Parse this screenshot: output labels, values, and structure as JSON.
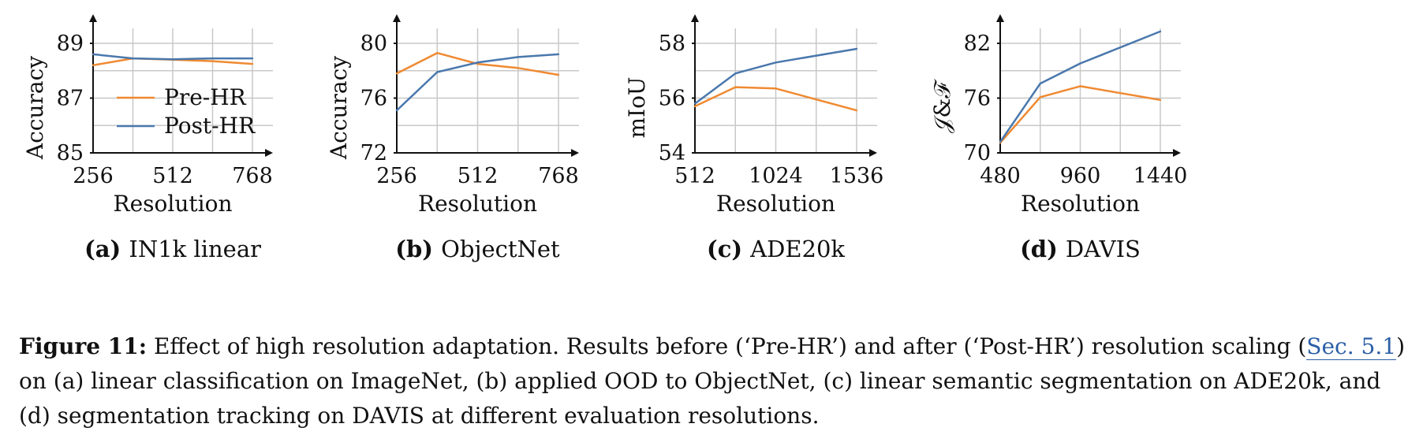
{
  "colors": {
    "pre": "#ef8a32",
    "post": "#4a78ad",
    "grid": "#c8c8c8",
    "axis": "#111111",
    "link": "#2b5fa6"
  },
  "legend": {
    "pre_label": "Pre-HR",
    "post_label": "Post-HR"
  },
  "chart_data": [
    {
      "type": "line",
      "subcaption_letter": "(a)",
      "subcaption_text": "IN1k linear",
      "xlabel": "Resolution",
      "ylabel": "Accuracy",
      "xticks": [
        256,
        512,
        768
      ],
      "yticks": [
        85,
        87,
        89
      ],
      "xlim": [
        256,
        768
      ],
      "ylim": [
        85,
        89.8
      ],
      "x": [
        256,
        384,
        512,
        640,
        768
      ],
      "series": [
        {
          "name": "Pre-HR",
          "values": [
            88.2,
            88.45,
            88.4,
            88.35,
            88.25
          ]
        },
        {
          "name": "Post-HR",
          "values": [
            88.6,
            88.45,
            88.42,
            88.45,
            88.45
          ]
        }
      ]
    },
    {
      "type": "line",
      "subcaption_letter": "(b)",
      "subcaption_text": "ObjectNet",
      "xlabel": "Resolution",
      "ylabel": "Accuracy",
      "xticks": [
        256,
        512,
        768
      ],
      "yticks": [
        72,
        76,
        80
      ],
      "xlim": [
        256,
        768
      ],
      "ylim": [
        72,
        81.6
      ],
      "x": [
        256,
        384,
        512,
        640,
        768
      ],
      "series": [
        {
          "name": "Pre-HR",
          "values": [
            77.8,
            79.3,
            78.5,
            78.2,
            77.7
          ]
        },
        {
          "name": "Post-HR",
          "values": [
            75.1,
            77.9,
            78.6,
            79.0,
            79.2
          ]
        }
      ]
    },
    {
      "type": "line",
      "subcaption_letter": "(c)",
      "subcaption_text": "ADE20k",
      "xlabel": "Resolution",
      "ylabel": "mIoU",
      "xticks": [
        512,
        1024,
        1536
      ],
      "yticks": [
        54,
        56,
        58
      ],
      "xlim": [
        512,
        1536
      ],
      "ylim": [
        54,
        58.8
      ],
      "x": [
        512,
        768,
        1024,
        1536
      ],
      "series": [
        {
          "name": "Pre-HR",
          "values": [
            55.7,
            56.4,
            56.35,
            55.55
          ]
        },
        {
          "name": "Post-HR",
          "values": [
            55.8,
            56.9,
            57.3,
            57.8
          ]
        }
      ]
    },
    {
      "type": "line",
      "subcaption_letter": "(d)",
      "subcaption_text": "DAVIS",
      "xlabel": "Resolution",
      "ylabel": "𝒥&ℱ",
      "xticks": [
        480,
        960,
        1440
      ],
      "yticks": [
        70,
        76,
        82
      ],
      "xlim": [
        480,
        1440
      ],
      "ylim": [
        70,
        84.4
      ],
      "x": [
        480,
        720,
        960,
        1440
      ],
      "series": [
        {
          "name": "Pre-HR",
          "values": [
            71.1,
            76.1,
            77.3,
            75.8
          ]
        },
        {
          "name": "Post-HR",
          "values": [
            71.2,
            77.6,
            79.8,
            83.3
          ]
        }
      ]
    }
  ],
  "caption": {
    "label": "Figure 11:",
    "part1": "Effect of high resolution adaptation. Results before (‘Pre-HR’) and after (‘Post-HR’) resolution scaling (",
    "link": "Sec. 5.1",
    "part2": ") on (a) linear classification on ImageNet, (b) applied OOD to ObjectNet, (c) linear semantic segmentation on ADE20k, and (d) segmentation tracking on DAVIS at different evaluation resolutions."
  }
}
